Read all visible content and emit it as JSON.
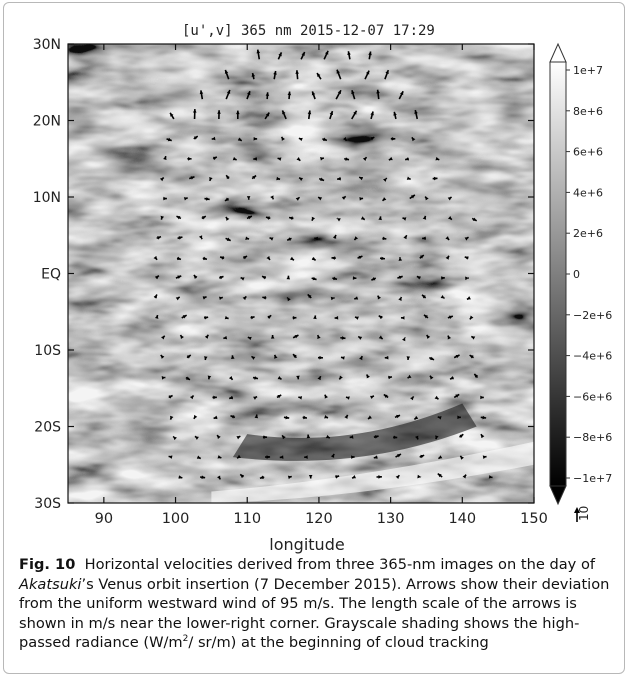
{
  "chart_data": {
    "type": "heatmap",
    "title": "[u',v]  365 nm  2015-12-07 17:29",
    "xlabel": "longitude",
    "ylabel": "",
    "xlim": [
      85,
      150
    ],
    "ylim": [
      -30,
      30
    ],
    "x_ticks": [
      90,
      100,
      110,
      120,
      130,
      140,
      150
    ],
    "y_ticks": [
      {
        "value": 30,
        "label": "30N"
      },
      {
        "value": 20,
        "label": "20N"
      },
      {
        "value": 10,
        "label": "10N"
      },
      {
        "value": 0,
        "label": "EQ"
      },
      {
        "value": -10,
        "label": "10S"
      },
      {
        "value": -20,
        "label": "20S"
      },
      {
        "value": -30,
        "label": "30S"
      }
    ],
    "colorbar": {
      "min": -10000000,
      "max": 10000000,
      "ticks": [
        {
          "value": 10000000,
          "label": "1e+7"
        },
        {
          "value": 8000000,
          "label": "8e+6"
        },
        {
          "value": 6000000,
          "label": "6e+6"
        },
        {
          "value": 4000000,
          "label": "4e+6"
        },
        {
          "value": 2000000,
          "label": "2e+6"
        },
        {
          "value": 0,
          "label": "0"
        },
        {
          "value": -2000000,
          "label": "−2e+6"
        },
        {
          "value": -4000000,
          "label": "−4e+6"
        },
        {
          "value": -6000000,
          "label": "−6e+6"
        },
        {
          "value": -8000000,
          "label": "−8e+6"
        },
        {
          "value": -10000000,
          "label": "−1e+7"
        }
      ]
    },
    "reference_vector": {
      "label": "10",
      "value": 10
    },
    "grid": false
  },
  "caption": {
    "label": "Fig. 10",
    "text_1": "Horizontal velocities derived from three 365-nm images on the day of ",
    "text_italic": "Akatsuki",
    "text_2": "’s Venus orbit insertion (7 December 2015). Arrows show their deviation from the uniform westward wind of 95 m/s. The length scale of the arrows is shown in m/s near the lower-right corner. Grayscale shading shows the high-passed radiance (W/m",
    "sup_1": "2",
    "text_3": "/ sr/m) at the beginning of cloud tracking"
  }
}
